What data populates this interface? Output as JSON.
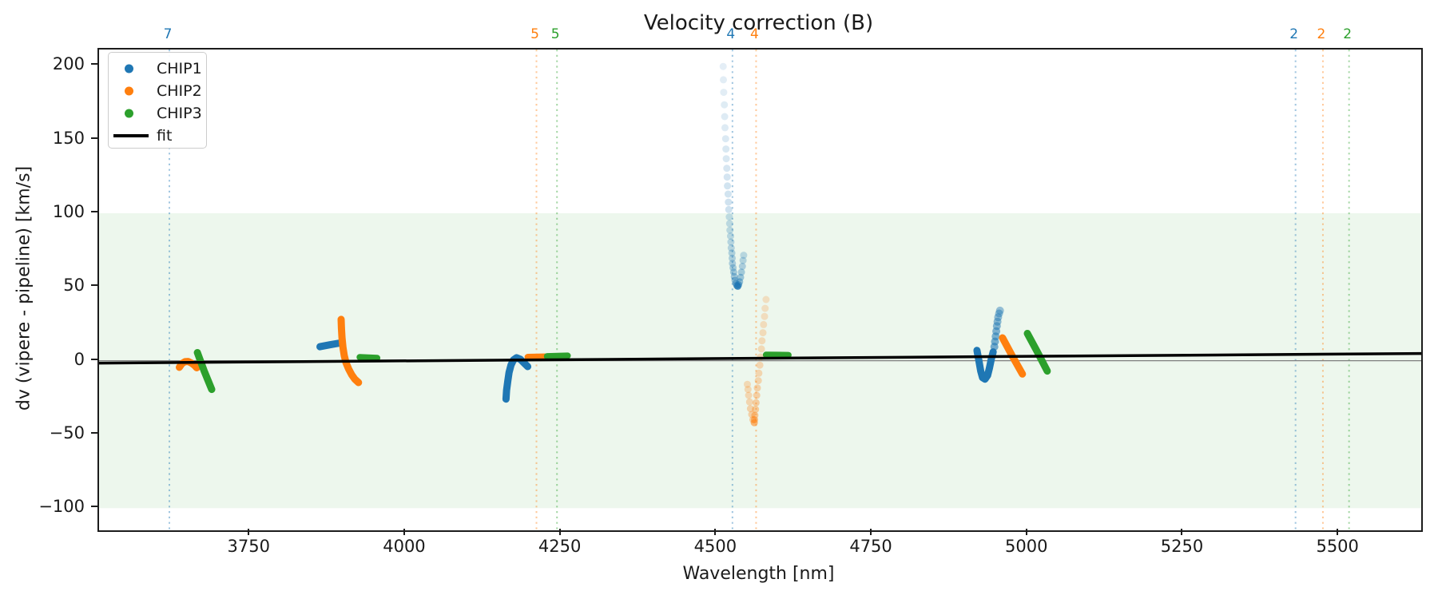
{
  "chart_data": {
    "type": "scatter",
    "title": "Velocity correction (B)",
    "xlabel": "Wavelength [nm]",
    "ylabel": "dv (vipere - pipeline) [km/s]",
    "xlim": [
      3507,
      5632
    ],
    "ylim": [
      -115,
      211
    ],
    "grid": false,
    "x_ticks": [
      3750,
      4000,
      4250,
      4500,
      4750,
      5000,
      5250,
      5500
    ],
    "x_tick_labels": [
      "3750",
      "4000",
      "4250",
      "4500",
      "4750",
      "5000",
      "5250",
      "5500"
    ],
    "y_ticks": [
      200,
      150,
      100,
      50,
      0,
      -50,
      -100
    ],
    "y_tick_labels": [
      "200",
      "150",
      "100",
      "50",
      "0",
      "−50",
      "−100"
    ],
    "band": {
      "ymin": -100,
      "ymax": 100,
      "color": "#2ca02c",
      "opacity": 0.085
    },
    "zero_line": {
      "y": 0,
      "color": "#7f7f7f",
      "width": 1.3
    },
    "fit_line": {
      "label": "fit",
      "color": "#000000",
      "width": 3.5,
      "points": [
        [
          3507,
          -1.6
        ],
        [
          5632,
          4.9
        ]
      ]
    },
    "vlines": [
      {
        "x": 3620,
        "label": "7",
        "color": "#1f77b4"
      },
      {
        "x": 4210,
        "label": "5",
        "color": "#ff7f0e"
      },
      {
        "x": 4243,
        "label": "5",
        "color": "#2ca02c"
      },
      {
        "x": 4525,
        "label": "4",
        "color": "#1f77b4"
      },
      {
        "x": 4563,
        "label": "4",
        "color": "#ff7f0e"
      },
      {
        "x": 5430,
        "label": "2",
        "color": "#1f77b4"
      },
      {
        "x": 5474,
        "label": "2",
        "color": "#ff7f0e"
      },
      {
        "x": 5516,
        "label": "2",
        "color": "#2ca02c"
      }
    ],
    "legend": {
      "position": "upper left",
      "entries": [
        {
          "label": "CHIP1",
          "color": "#1f77b4",
          "marker": "dot"
        },
        {
          "label": "CHIP2",
          "color": "#ff7f0e",
          "marker": "dot"
        },
        {
          "label": "CHIP3",
          "color": "#2ca02c",
          "marker": "dot"
        },
        {
          "label": "fit",
          "color": "#000000",
          "marker": "line"
        }
      ]
    },
    "series": [
      {
        "name": "CHIP1",
        "color": "#1f77b4",
        "clusters": [
          {
            "style": "line",
            "width": 9,
            "points": [
              [
                3862,
                9.5
              ],
              [
                3878,
                10.8
              ],
              [
                3894,
                12
              ]
            ]
          },
          {
            "style": "line",
            "width": 9,
            "points": [
              [
                4161,
                -26
              ],
              [
                4162,
                -20
              ],
              [
                4164,
                -13.5
              ],
              [
                4166,
                -8
              ],
              [
                4169,
                -3
              ],
              [
                4173,
                0.5
              ],
              [
                4178,
                2
              ],
              [
                4184,
                1
              ],
              [
                4190,
                -1.5
              ],
              [
                4196,
                -4
              ]
            ]
          },
          {
            "style": "dots",
            "radius": 4.5,
            "points": [
              [
                4510,
                199.5,
                0.12
              ],
              [
                4510.5,
                190.5,
                0.13
              ],
              [
                4511,
                182,
                0.13
              ],
              [
                4512,
                173.5,
                0.14
              ],
              [
                4512.5,
                165.5,
                0.15
              ],
              [
                4513,
                158,
                0.15
              ],
              [
                4514,
                150.5,
                0.16
              ],
              [
                4514.5,
                143.5,
                0.17
              ],
              [
                4515,
                137,
                0.17
              ],
              [
                4516,
                130.5,
                0.18
              ],
              [
                4516.5,
                124.5,
                0.19
              ],
              [
                4517,
                118.5,
                0.2
              ],
              [
                4518,
                113,
                0.2
              ],
              [
                4518.5,
                107.5,
                0.21
              ],
              [
                4519,
                102.5,
                0.22
              ],
              [
                4520,
                97.5,
                0.23
              ],
              [
                4520.5,
                93,
                0.24
              ],
              [
                4521,
                88.5,
                0.25
              ],
              [
                4522,
                84.5,
                0.26
              ],
              [
                4522.5,
                80.5,
                0.27
              ],
              [
                4523,
                76.5,
                0.28
              ],
              [
                4524,
                73,
                0.3
              ],
              [
                4524.5,
                69.5,
                0.31
              ],
              [
                4525,
                66,
                0.32
              ],
              [
                4526,
                63,
                0.34
              ],
              [
                4527,
                60,
                0.36
              ],
              [
                4528,
                57,
                0.38
              ],
              [
                4529,
                54.5,
                0.42
              ],
              [
                4530.5,
                52.5,
                0.48
              ],
              [
                4532,
                51,
                0.6
              ],
              [
                4533.5,
                50.5,
                0.78
              ],
              [
                4535,
                51.5,
                0.55
              ],
              [
                4536.5,
                53.5,
                0.45
              ],
              [
                4538,
                56.5,
                0.4
              ],
              [
                4539.5,
                60,
                0.36
              ],
              [
                4541,
                64,
                0.32
              ],
              [
                4542,
                68,
                0.29
              ],
              [
                4543,
                71.5,
                0.26
              ]
            ]
          },
          {
            "style": "line",
            "width": 9,
            "points": [
              [
                4918,
                7
              ],
              [
                4921,
                0
              ],
              [
                4924,
                -7
              ],
              [
                4927,
                -11.5
              ],
              [
                4931,
                -12.5
              ],
              [
                4935,
                -10
              ],
              [
                4938,
                -5
              ],
              [
                4941,
                1
              ],
              [
                4944,
                6
              ]
            ]
          },
          {
            "style": "dots",
            "radius": 5,
            "points": [
              [
                4946,
                9.5,
                0.6
              ],
              [
                4947,
                13,
                0.58
              ],
              [
                4948,
                16.5,
                0.56
              ],
              [
                4949,
                20,
                0.54
              ],
              [
                4950,
                23.5,
                0.52
              ],
              [
                4951,
                26.5,
                0.5
              ],
              [
                4952,
                29.5,
                0.48
              ],
              [
                4953.5,
                32,
                0.46
              ],
              [
                4955,
                34,
                0.44
              ]
            ]
          }
        ]
      },
      {
        "name": "CHIP2",
        "color": "#ff7f0e",
        "clusters": [
          {
            "style": "line",
            "width": 9,
            "points": [
              [
                3636,
                -4.5
              ],
              [
                3640,
                -2
              ],
              [
                3645,
                -0.7
              ],
              [
                3650,
                -0.5
              ],
              [
                3655,
                -1.5
              ],
              [
                3660,
                -3
              ],
              [
                3664,
                -4.8
              ]
            ]
          },
          {
            "style": "line",
            "width": 9,
            "points": [
              [
                3896,
                28
              ],
              [
                3896.5,
                22
              ],
              [
                3897.5,
                15.5
              ],
              [
                3899,
                9
              ],
              [
                3901,
                3.5
              ],
              [
                3904,
                -1.5
              ],
              [
                3908,
                -5.5
              ],
              [
                3913,
                -9.5
              ],
              [
                3918,
                -12.5
              ],
              [
                3924,
                -14.8
              ]
            ]
          },
          {
            "style": "line",
            "width": 8,
            "points": [
              [
                4196,
                2.5
              ],
              [
                4211,
                2.6
              ],
              [
                4226,
                2.8
              ]
            ]
          },
          {
            "style": "dots",
            "radius": 4.5,
            "points": [
              [
                4579,
                41.5,
                0.2
              ],
              [
                4577.5,
                35.5,
                0.2
              ],
              [
                4576.5,
                30,
                0.21
              ],
              [
                4575,
                24.5,
                0.22
              ],
              [
                4574,
                19,
                0.23
              ],
              [
                4572.5,
                13.5,
                0.24
              ],
              [
                4571.5,
                8,
                0.25
              ],
              [
                4570,
                2.5,
                0.26
              ],
              [
                4569,
                -3,
                0.27
              ],
              [
                4567.5,
                -8.5,
                0.28
              ],
              [
                4566.5,
                -13.5,
                0.29
              ],
              [
                4565,
                -18.5,
                0.31
              ],
              [
                4564,
                -23.5,
                0.33
              ],
              [
                4563,
                -28.5,
                0.35
              ],
              [
                4562,
                -33,
                0.37
              ],
              [
                4561,
                -37,
                0.4
              ],
              [
                4560.5,
                -40,
                0.45
              ],
              [
                4560,
                -42,
                0.55
              ],
              [
                4558,
                -40,
                0.35
              ],
              [
                4556,
                -36.5,
                0.32
              ],
              [
                4554,
                -32.5,
                0.3
              ],
              [
                4552.5,
                -28,
                0.28
              ],
              [
                4551,
                -23.5,
                0.27
              ],
              [
                4550,
                -19.5,
                0.26
              ],
              [
                4549,
                -16,
                0.25
              ]
            ]
          },
          {
            "style": "line",
            "width": 9,
            "points": [
              [
                4959,
                15.5
              ],
              [
                4975,
                3
              ],
              [
                4991,
                -9
              ]
            ]
          }
        ]
      },
      {
        "name": "CHIP3",
        "color": "#2ca02c",
        "clusters": [
          {
            "style": "line",
            "width": 9,
            "points": [
              [
                3665,
                5.5
              ],
              [
                3676,
                -7
              ],
              [
                3688,
                -19.5
              ]
            ]
          },
          {
            "style": "line",
            "width": 8,
            "points": [
              [
                3926,
                2.4
              ],
              [
                3940,
                2.1
              ],
              [
                3954,
                1.8
              ]
            ]
          },
          {
            "style": "line",
            "width": 8,
            "points": [
              [
                4227,
                3
              ],
              [
                4243,
                3.2
              ],
              [
                4260,
                3.4
              ]
            ]
          },
          {
            "style": "line",
            "width": 8,
            "points": [
              [
                4579,
                4
              ],
              [
                4597,
                3.9
              ],
              [
                4615,
                3.8
              ]
            ]
          },
          {
            "style": "line",
            "width": 9,
            "points": [
              [
                4999,
                18.5
              ],
              [
                5015,
                6
              ],
              [
                5031,
                -7
              ]
            ]
          }
        ]
      }
    ]
  }
}
